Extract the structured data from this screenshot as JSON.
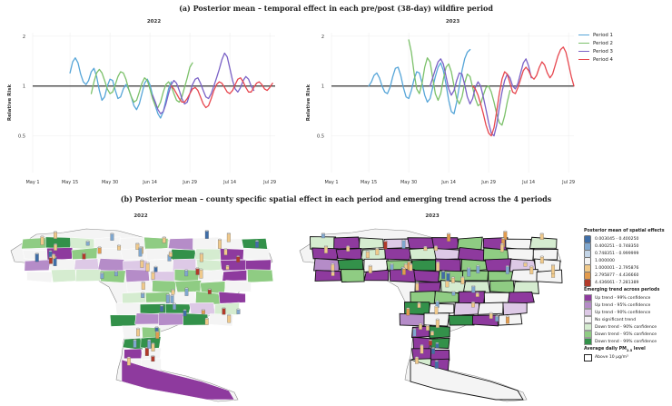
{
  "title_a": "(a)  Posterior mean – temporal effect in each pre/post (38-day) wildfire period",
  "title_b": "(b)  Posterior mean – county specific spatial effect in each period and emerging trend across the 4 periods",
  "chart_data": [
    {
      "type": "line",
      "title": "2022",
      "xlabel": "",
      "ylabel": "Relative Risk",
      "xticks": [
        "May 1",
        "May 15",
        "May 30",
        "Jun 14",
        "Jun 29",
        "Jul 14",
        "Jul 29"
      ],
      "yticks": [
        "0.5",
        "1",
        "2"
      ],
      "ylim": [
        0.3,
        2.1
      ],
      "reference_line": 1,
      "series": [
        {
          "name": "Period 1",
          "x": [
            15,
            16,
            17,
            18,
            19,
            20,
            21,
            22,
            23,
            24,
            25,
            26,
            27,
            28,
            29,
            30,
            31,
            32,
            33,
            34,
            35,
            36,
            37,
            38,
            39,
            40,
            41,
            42,
            43,
            44,
            45,
            46,
            47,
            48,
            49,
            50,
            51,
            52,
            53
          ],
          "values": [
            1.2,
            1.4,
            1.48,
            1.38,
            1.18,
            1.06,
            1.02,
            1.08,
            1.22,
            1.28,
            1.14,
            0.94,
            0.82,
            0.86,
            1.0,
            1.1,
            1.08,
            0.94,
            0.84,
            0.86,
            0.96,
            1.02,
            0.96,
            0.86,
            0.76,
            0.72,
            0.78,
            0.9,
            1.04,
            1.1,
            1.02,
            0.88,
            0.76,
            0.68,
            0.64,
            0.7,
            0.82,
            0.96,
            1.06
          ]
        },
        {
          "name": "Period 2",
          "x": [
            23,
            24,
            25,
            26,
            27,
            28,
            29,
            30,
            31,
            32,
            33,
            34,
            35,
            36,
            37,
            38,
            39,
            40,
            41,
            42,
            43,
            44,
            45,
            46,
            47,
            48,
            49,
            50,
            51,
            52,
            53,
            54,
            55,
            56,
            57,
            58,
            59,
            60,
            61
          ],
          "values": [
            0.9,
            1.06,
            1.2,
            1.26,
            1.2,
            1.08,
            0.96,
            0.9,
            0.92,
            1.02,
            1.14,
            1.22,
            1.2,
            1.1,
            0.96,
            0.86,
            0.8,
            0.82,
            0.92,
            1.04,
            1.12,
            1.08,
            0.96,
            0.84,
            0.76,
            0.74,
            0.8,
            0.92,
            1.02,
            1.06,
            1.0,
            0.9,
            0.82,
            0.8,
            0.86,
            0.98,
            1.12,
            1.3,
            1.38
          ]
        },
        {
          "name": "Period 3",
          "x": [
            46,
            47,
            48,
            49,
            50,
            51,
            52,
            53,
            54,
            55,
            56,
            57,
            58,
            59,
            60,
            61,
            62,
            63,
            64,
            65,
            66,
            67,
            68,
            69,
            70,
            71,
            72,
            73,
            74,
            75,
            76,
            77,
            78,
            79,
            80,
            81,
            82,
            83,
            84
          ],
          "values": [
            0.88,
            0.8,
            0.72,
            0.68,
            0.7,
            0.78,
            0.9,
            1.02,
            1.08,
            1.04,
            0.94,
            0.84,
            0.78,
            0.8,
            0.9,
            1.02,
            1.1,
            1.12,
            1.04,
            0.94,
            0.86,
            0.84,
            0.9,
            1.0,
            1.12,
            1.26,
            1.44,
            1.58,
            1.5,
            1.28,
            1.08,
            0.96,
            0.92,
            0.98,
            1.08,
            1.14,
            1.1,
            1.0,
            0.94
          ]
        },
        {
          "name": "Period 4",
          "x": [
            53,
            54,
            55,
            56,
            57,
            58,
            59,
            60,
            61,
            62,
            63,
            64,
            65,
            66,
            67,
            68,
            69,
            70,
            71,
            72,
            73,
            74,
            75,
            76,
            77,
            78,
            79,
            80,
            81,
            82,
            83,
            84,
            85,
            86,
            87,
            88,
            89,
            90,
            91
          ],
          "values": [
            1.0,
            0.96,
            0.9,
            0.84,
            0.8,
            0.8,
            0.84,
            0.9,
            0.96,
            0.98,
            0.94,
            0.86,
            0.78,
            0.74,
            0.76,
            0.84,
            0.94,
            1.02,
            1.06,
            1.04,
            0.98,
            0.92,
            0.9,
            0.94,
            1.02,
            1.1,
            1.12,
            1.06,
            0.98,
            0.92,
            0.92,
            0.98,
            1.04,
            1.06,
            1.02,
            0.96,
            0.94,
            0.98,
            1.04
          ]
        }
      ]
    },
    {
      "type": "line",
      "title": "2023",
      "xlabel": "",
      "ylabel": "Relative Risk",
      "xticks": [
        "May 1",
        "May 15",
        "May 30",
        "Jun 14",
        "Jun 29",
        "Jul 14",
        "Jul 29"
      ],
      "yticks": [
        "0.5",
        "1",
        "2"
      ],
      "ylim": [
        0.3,
        2.1
      ],
      "reference_line": 1,
      "series": [
        {
          "name": "Period 1",
          "x": [
            15,
            16,
            17,
            18,
            19,
            20,
            21,
            22,
            23,
            24,
            25,
            26,
            27,
            28,
            29,
            30,
            31,
            32,
            33,
            34,
            35,
            36,
            37,
            38,
            39,
            40,
            41,
            42,
            43,
            44,
            45,
            46,
            47,
            48,
            49,
            50,
            51,
            52,
            53
          ],
          "values": [
            1.0,
            1.06,
            1.16,
            1.2,
            1.12,
            1.0,
            0.92,
            0.9,
            0.98,
            1.14,
            1.28,
            1.3,
            1.16,
            0.98,
            0.86,
            0.84,
            0.94,
            1.1,
            1.22,
            1.2,
            1.04,
            0.88,
            0.8,
            0.84,
            0.98,
            1.14,
            1.3,
            1.38,
            1.24,
            1.02,
            0.82,
            0.7,
            0.68,
            0.8,
            1.0,
            1.24,
            1.46,
            1.6,
            1.66
          ]
        },
        {
          "name": "Period 2",
          "x": [
            30,
            31,
            32,
            33,
            34,
            35,
            36,
            37,
            38,
            39,
            40,
            41,
            42,
            43,
            44,
            45,
            46,
            47,
            48,
            49,
            50,
            51,
            52,
            53,
            54,
            55,
            56,
            57,
            58,
            59,
            60,
            61,
            62,
            63,
            64,
            65,
            66,
            67,
            68
          ],
          "values": [
            1.9,
            1.6,
            1.2,
            0.96,
            0.9,
            1.04,
            1.3,
            1.48,
            1.4,
            1.12,
            0.9,
            0.82,
            0.9,
            1.1,
            1.3,
            1.36,
            1.22,
            1.0,
            0.84,
            0.78,
            0.86,
            1.04,
            1.18,
            1.14,
            0.98,
            0.84,
            0.76,
            0.78,
            0.88,
            0.98,
            1.0,
            0.92,
            0.8,
            0.68,
            0.6,
            0.58,
            0.66,
            0.8,
            0.94
          ]
        },
        {
          "name": "Period 3",
          "x": [
            38,
            39,
            40,
            41,
            42,
            43,
            44,
            45,
            46,
            47,
            48,
            49,
            50,
            51,
            52,
            53,
            54,
            55,
            56,
            57,
            58,
            59,
            60,
            61,
            62,
            63,
            64,
            65,
            66,
            67,
            68,
            69,
            70,
            71,
            72,
            73,
            74,
            75,
            76
          ],
          "values": [
            1.0,
            1.12,
            1.26,
            1.4,
            1.46,
            1.36,
            1.14,
            0.96,
            0.88,
            0.94,
            1.08,
            1.2,
            1.18,
            1.02,
            0.86,
            0.78,
            0.84,
            0.98,
            1.06,
            1.0,
            0.86,
            0.72,
            0.6,
            0.52,
            0.5,
            0.58,
            0.74,
            0.92,
            1.08,
            1.18,
            1.12,
            1.0,
            0.96,
            1.04,
            1.2,
            1.38,
            1.46,
            1.32,
            1.12
          ]
        },
        {
          "name": "Period 4",
          "x": [
            54,
            55,
            56,
            57,
            58,
            59,
            60,
            61,
            62,
            63,
            64,
            65,
            66,
            67,
            68,
            69,
            70,
            71,
            72,
            73,
            74,
            75,
            76,
            77,
            78,
            79,
            80,
            81,
            82,
            83,
            84,
            85,
            86,
            87,
            88,
            89,
            90,
            91,
            92
          ],
          "values": [
            1.0,
            0.96,
            0.88,
            0.78,
            0.68,
            0.58,
            0.52,
            0.5,
            0.56,
            0.7,
            0.9,
            1.1,
            1.22,
            1.18,
            1.04,
            0.92,
            0.9,
            0.98,
            1.1,
            1.24,
            1.3,
            1.24,
            1.14,
            1.1,
            1.16,
            1.3,
            1.4,
            1.34,
            1.2,
            1.12,
            1.18,
            1.34,
            1.52,
            1.66,
            1.72,
            1.6,
            1.36,
            1.14,
            1.0
          ]
        }
      ]
    }
  ],
  "line_legend": [
    {
      "label": "Period 1",
      "color": "#56a5d8"
    },
    {
      "label": "Period 2",
      "color": "#7cc16a"
    },
    {
      "label": "Period 3",
      "color": "#7a61c6"
    },
    {
      "label": "Period 4",
      "color": "#e7474f"
    }
  ],
  "map_titles": [
    "2022",
    "2023"
  ],
  "spatial_legend": {
    "heading": "Posterior mean of spatial effects",
    "items": [
      {
        "label": "0.003045 - 0.400250",
        "color": "#3f6ea8"
      },
      {
        "label": "0.400251 - 0.748350",
        "color": "#7fa7cf"
      },
      {
        "label": "0.748351 - 0.999999",
        "color": "#c3d4e6"
      },
      {
        "label": "1.000000",
        "color": "#f2f2f2"
      },
      {
        "label": "1.000001 - 2.795876",
        "color": "#f0c98a"
      },
      {
        "label": "2.795877 - 4.436660",
        "color": "#e39b4c"
      },
      {
        "label": "4.436661 - 7.281389",
        "color": "#b23a2a"
      }
    ]
  },
  "trend_legend": {
    "heading": "Emerging trend across periods",
    "items": [
      {
        "label": "Up trend - 99% confidence",
        "color": "#8e3a9e"
      },
      {
        "label": "Up trend - 95% confidence",
        "color": "#b58cc8"
      },
      {
        "label": "Up trend - 90% confidence",
        "color": "#ddc9e6"
      },
      {
        "label": "No significant trend",
        "color": "#f4f4f4"
      },
      {
        "label": "Down trend - 90% confidence",
        "color": "#d5ecd0"
      },
      {
        "label": "Down trend - 95% confidence",
        "color": "#8fcc83"
      },
      {
        "label": "Down trend - 99% confidence",
        "color": "#33914a"
      }
    ]
  },
  "pm_legend": {
    "heading_pre": "Average daily PM",
    "heading_sub": "2.5",
    "heading_post": " level",
    "item": "Above 10 μg/m³"
  }
}
